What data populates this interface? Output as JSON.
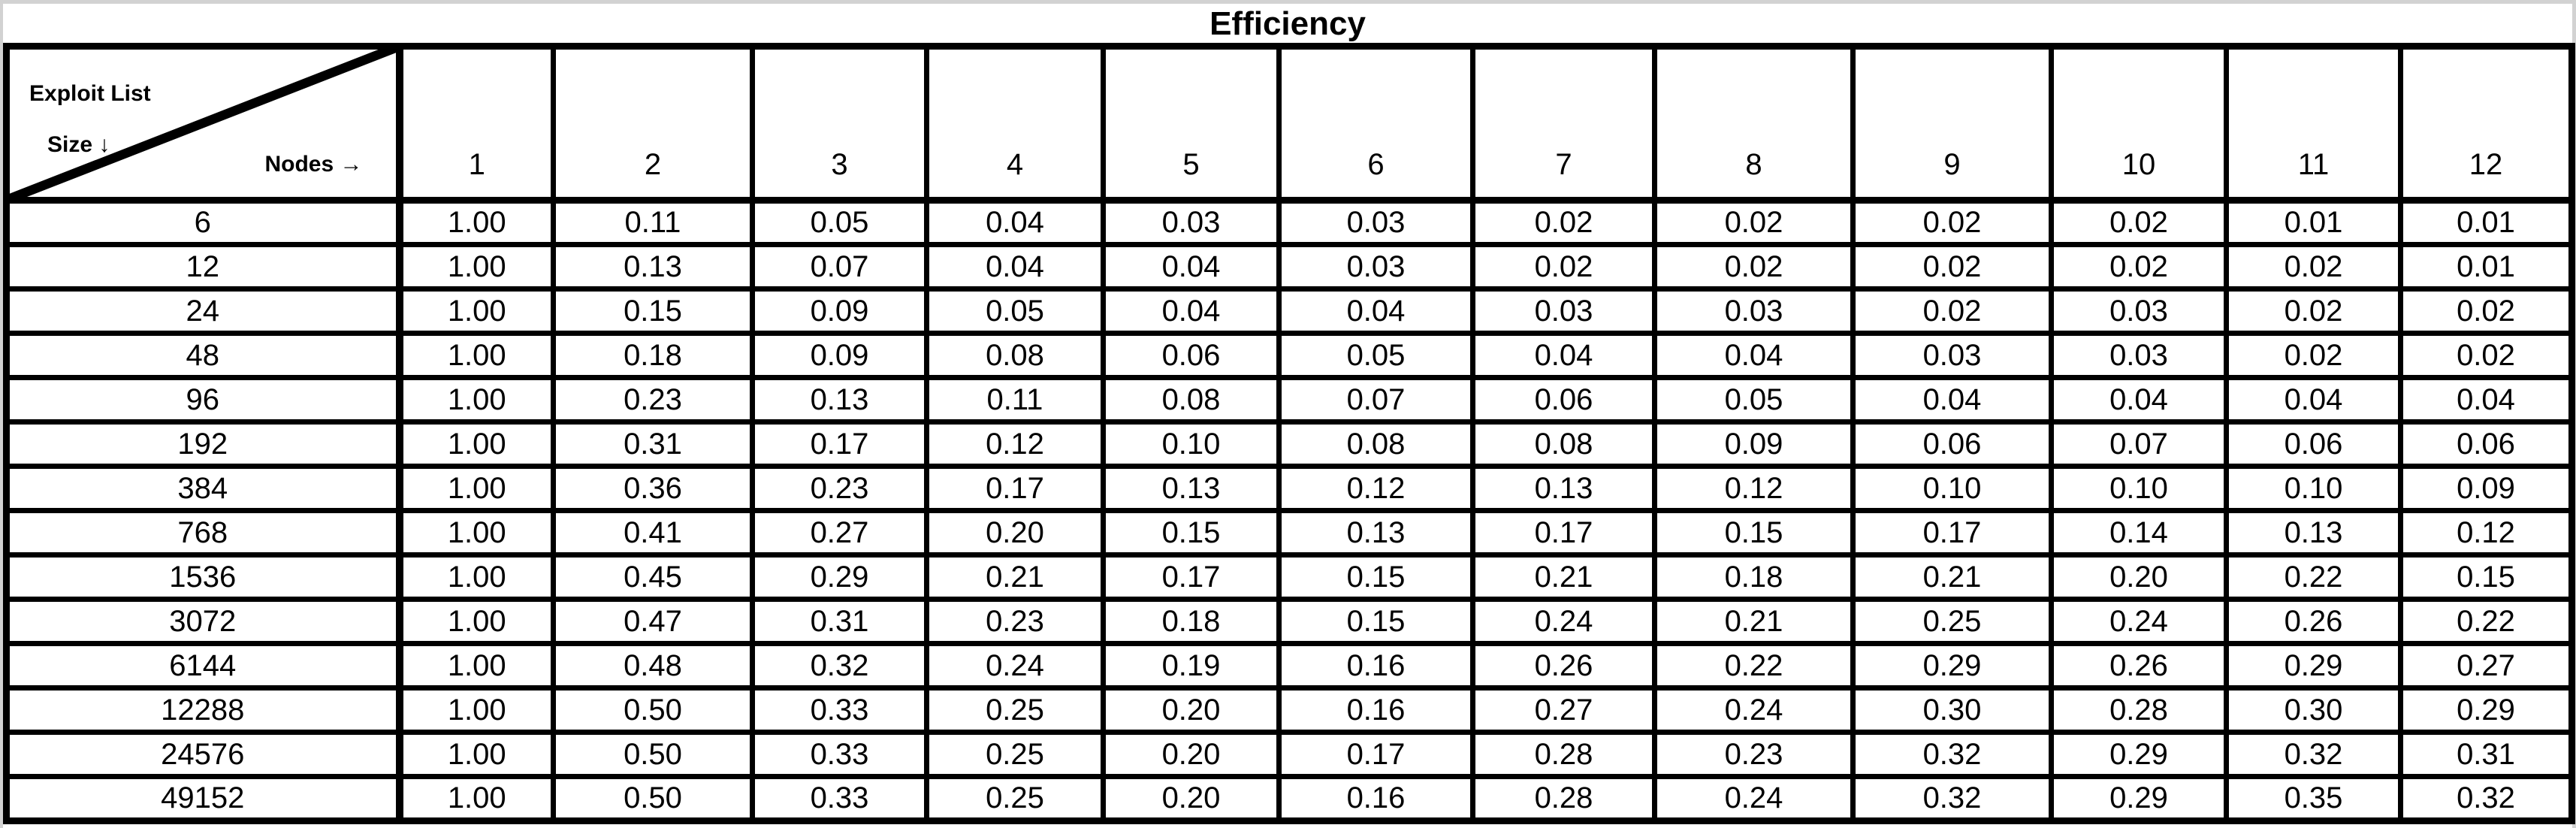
{
  "title": "Efficiency",
  "corner": {
    "row_axis_line1": "Exploit List",
    "row_axis_line2": "Size ↓",
    "col_axis_label": "Nodes →"
  },
  "columns": [
    "1",
    "2",
    "3",
    "4",
    "5",
    "6",
    "7",
    "8",
    "9",
    "10",
    "11",
    "12"
  ],
  "rows": [
    {
      "size": "6",
      "values": [
        "1.00",
        "0.11",
        "0.05",
        "0.04",
        "0.03",
        "0.03",
        "0.02",
        "0.02",
        "0.02",
        "0.02",
        "0.01",
        "0.01"
      ]
    },
    {
      "size": "12",
      "values": [
        "1.00",
        "0.13",
        "0.07",
        "0.04",
        "0.04",
        "0.03",
        "0.02",
        "0.02",
        "0.02",
        "0.02",
        "0.02",
        "0.01"
      ]
    },
    {
      "size": "24",
      "values": [
        "1.00",
        "0.15",
        "0.09",
        "0.05",
        "0.04",
        "0.04",
        "0.03",
        "0.03",
        "0.02",
        "0.03",
        "0.02",
        "0.02"
      ]
    },
    {
      "size": "48",
      "values": [
        "1.00",
        "0.18",
        "0.09",
        "0.08",
        "0.06",
        "0.05",
        "0.04",
        "0.04",
        "0.03",
        "0.03",
        "0.02",
        "0.02"
      ]
    },
    {
      "size": "96",
      "values": [
        "1.00",
        "0.23",
        "0.13",
        "0.11",
        "0.08",
        "0.07",
        "0.06",
        "0.05",
        "0.04",
        "0.04",
        "0.04",
        "0.04"
      ]
    },
    {
      "size": "192",
      "values": [
        "1.00",
        "0.31",
        "0.17",
        "0.12",
        "0.10",
        "0.08",
        "0.08",
        "0.09",
        "0.06",
        "0.07",
        "0.06",
        "0.06"
      ]
    },
    {
      "size": "384",
      "values": [
        "1.00",
        "0.36",
        "0.23",
        "0.17",
        "0.13",
        "0.12",
        "0.13",
        "0.12",
        "0.10",
        "0.10",
        "0.10",
        "0.09"
      ]
    },
    {
      "size": "768",
      "values": [
        "1.00",
        "0.41",
        "0.27",
        "0.20",
        "0.15",
        "0.13",
        "0.17",
        "0.15",
        "0.17",
        "0.14",
        "0.13",
        "0.12"
      ]
    },
    {
      "size": "1536",
      "values": [
        "1.00",
        "0.45",
        "0.29",
        "0.21",
        "0.17",
        "0.15",
        "0.21",
        "0.18",
        "0.21",
        "0.20",
        "0.22",
        "0.15"
      ]
    },
    {
      "size": "3072",
      "values": [
        "1.00",
        "0.47",
        "0.31",
        "0.23",
        "0.18",
        "0.15",
        "0.24",
        "0.21",
        "0.25",
        "0.24",
        "0.26",
        "0.22"
      ]
    },
    {
      "size": "6144",
      "values": [
        "1.00",
        "0.48",
        "0.32",
        "0.24",
        "0.19",
        "0.16",
        "0.26",
        "0.22",
        "0.29",
        "0.26",
        "0.29",
        "0.27"
      ]
    },
    {
      "size": "12288",
      "values": [
        "1.00",
        "0.50",
        "0.33",
        "0.25",
        "0.20",
        "0.16",
        "0.27",
        "0.24",
        "0.30",
        "0.28",
        "0.30",
        "0.29"
      ]
    },
    {
      "size": "24576",
      "values": [
        "1.00",
        "0.50",
        "0.33",
        "0.25",
        "0.20",
        "0.17",
        "0.28",
        "0.23",
        "0.32",
        "0.29",
        "0.32",
        "0.31"
      ]
    },
    {
      "size": "49152",
      "values": [
        "1.00",
        "0.50",
        "0.33",
        "0.25",
        "0.20",
        "0.16",
        "0.28",
        "0.24",
        "0.32",
        "0.29",
        "0.35",
        "0.32"
      ]
    }
  ],
  "colors": {
    "border": "#000000",
    "background": "#ffffff",
    "page_edge": "#d2d2d2",
    "text": "#000000"
  },
  "chart_data": {
    "type": "table",
    "title": "Efficiency",
    "row_axis_label": "Exploit List Size",
    "column_axis_label": "Nodes",
    "columns": [
      1,
      2,
      3,
      4,
      5,
      6,
      7,
      8,
      9,
      10,
      11,
      12
    ],
    "row_labels": [
      6,
      12,
      24,
      48,
      96,
      192,
      384,
      768,
      1536,
      3072,
      6144,
      12288,
      24576,
      49152
    ],
    "values": [
      [
        1.0,
        0.11,
        0.05,
        0.04,
        0.03,
        0.03,
        0.02,
        0.02,
        0.02,
        0.02,
        0.01,
        0.01
      ],
      [
        1.0,
        0.13,
        0.07,
        0.04,
        0.04,
        0.03,
        0.02,
        0.02,
        0.02,
        0.02,
        0.02,
        0.01
      ],
      [
        1.0,
        0.15,
        0.09,
        0.05,
        0.04,
        0.04,
        0.03,
        0.03,
        0.02,
        0.03,
        0.02,
        0.02
      ],
      [
        1.0,
        0.18,
        0.09,
        0.08,
        0.06,
        0.05,
        0.04,
        0.04,
        0.03,
        0.03,
        0.02,
        0.02
      ],
      [
        1.0,
        0.23,
        0.13,
        0.11,
        0.08,
        0.07,
        0.06,
        0.05,
        0.04,
        0.04,
        0.04,
        0.04
      ],
      [
        1.0,
        0.31,
        0.17,
        0.12,
        0.1,
        0.08,
        0.08,
        0.09,
        0.06,
        0.07,
        0.06,
        0.06
      ],
      [
        1.0,
        0.36,
        0.23,
        0.17,
        0.13,
        0.12,
        0.13,
        0.12,
        0.1,
        0.1,
        0.1,
        0.09
      ],
      [
        1.0,
        0.41,
        0.27,
        0.2,
        0.15,
        0.13,
        0.17,
        0.15,
        0.17,
        0.14,
        0.13,
        0.12
      ],
      [
        1.0,
        0.45,
        0.29,
        0.21,
        0.17,
        0.15,
        0.21,
        0.18,
        0.21,
        0.2,
        0.22,
        0.15
      ],
      [
        1.0,
        0.47,
        0.31,
        0.23,
        0.18,
        0.15,
        0.24,
        0.21,
        0.25,
        0.24,
        0.26,
        0.22
      ],
      [
        1.0,
        0.48,
        0.32,
        0.24,
        0.19,
        0.16,
        0.26,
        0.22,
        0.29,
        0.26,
        0.29,
        0.27
      ],
      [
        1.0,
        0.5,
        0.33,
        0.25,
        0.2,
        0.16,
        0.27,
        0.24,
        0.3,
        0.28,
        0.3,
        0.29
      ],
      [
        1.0,
        0.5,
        0.33,
        0.25,
        0.2,
        0.17,
        0.28,
        0.23,
        0.32,
        0.29,
        0.32,
        0.31
      ],
      [
        1.0,
        0.5,
        0.33,
        0.25,
        0.2,
        0.16,
        0.28,
        0.24,
        0.32,
        0.29,
        0.35,
        0.32
      ]
    ]
  }
}
